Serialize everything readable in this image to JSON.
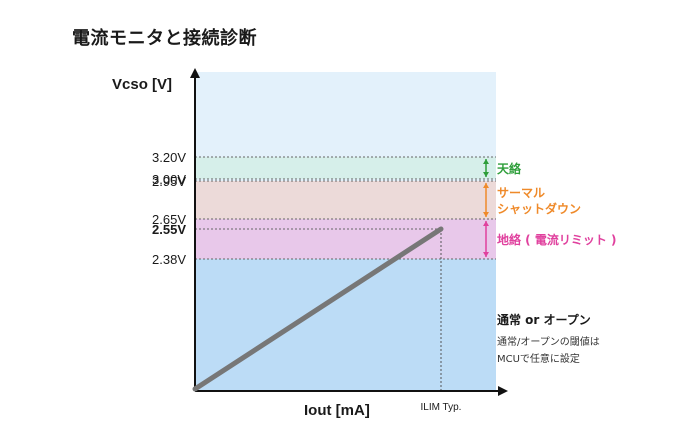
{
  "title": "電流モニタと接続診断",
  "chart_data": {
    "type": "line",
    "ylabel": "Vcso [V]",
    "xlabel": "Iout [mA]",
    "x_ticks": [
      "ILIM Typ."
    ],
    "y_ticks": [
      "3.20V",
      "3.00V",
      "2.95V",
      "2.65V",
      "2.55V",
      "2.38V"
    ],
    "bold_y_tick": "2.55V",
    "series": [
      {
        "x": [
          0,
          1
        ],
        "y": [
          0,
          2.55
        ]
      }
    ],
    "bands": [
      {
        "from": 3.0,
        "to": 3.2,
        "label": [
          "天絡"
        ],
        "color": "#2e9e3a",
        "fill": "#d6efea"
      },
      {
        "from": 2.65,
        "to": 2.95,
        "label": [
          "サーマル",
          "シャットダウン"
        ],
        "color": "#ef8a2a",
        "fill": "#ecdad9"
      },
      {
        "from": 2.38,
        "to": 2.65,
        "label": [
          "地絡 ( 電流リミット )"
        ],
        "color": "#e0419e",
        "fill": "#e8c8ea"
      }
    ],
    "lower_region": {
      "title": "通常 or オープン",
      "lines": [
        "通常/オープンの閾値は",
        "MCUで任意に設定"
      ]
    },
    "colors": {
      "upper_bg": "#e3f1fb",
      "lower_bg": "#bcdcf6",
      "line": "#777777"
    }
  }
}
